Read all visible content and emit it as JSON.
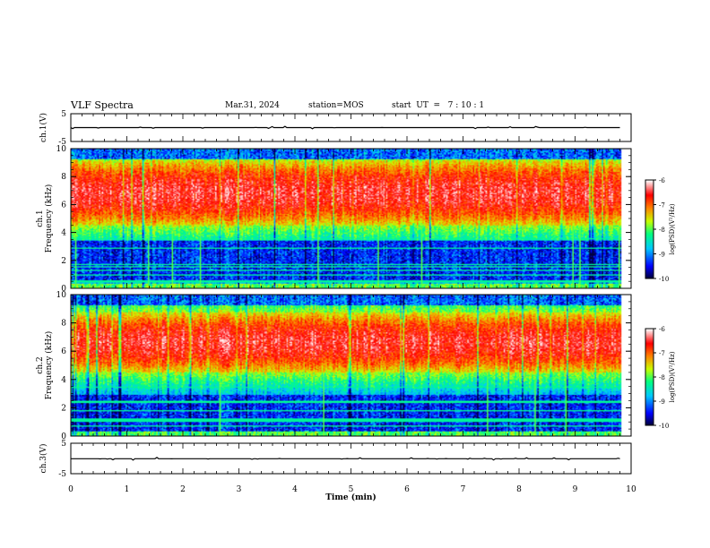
{
  "header": {
    "title": "VLF Spectra",
    "date": "Mar.31, 2024",
    "station": "station=MOS",
    "start": "start  UT  =   7 : 10 : 1"
  },
  "chart_data": [
    {
      "type": "line",
      "id": "ch1-waveform",
      "ylabel": "ch.1(V)",
      "ylim": [
        -5,
        5
      ],
      "yticks": [
        "5",
        "-5"
      ],
      "series": [
        {
          "x_min": [
            0,
            9.8
          ],
          "values_approx": 0
        }
      ]
    },
    {
      "type": "heatmap",
      "id": "ch1-spectrogram",
      "ylabel": "ch.1\nFrequency (kHz)",
      "ylabel_lines": [
        "ch.1",
        "Frequency (kHz)"
      ],
      "xlim": [
        0,
        10
      ],
      "ylim": [
        0,
        10
      ],
      "yticks": [
        "0",
        "2",
        "4",
        "6",
        "8",
        "10"
      ],
      "data_xlim": [
        0,
        9.8
      ],
      "colorbar": {
        "label": "log(PSD)(V²/Hz)",
        "range": [
          -10,
          -6
        ],
        "ticks": [
          "-6",
          "-7",
          "-8",
          "-9",
          "-10"
        ]
      },
      "bands_kHz": {
        "high_intensity": [
          4.5,
          9.2
        ],
        "low_quiet": [
          0.5,
          3.5
        ],
        "top_quiet": [
          9.2,
          10
        ]
      }
    },
    {
      "type": "heatmap",
      "id": "ch2-spectrogram",
      "ylabel": "ch.2\nFrequency (kHz)",
      "ylabel_lines": [
        "ch.2",
        "Frequency (kHz)"
      ],
      "xlim": [
        0,
        10
      ],
      "ylim": [
        0,
        10
      ],
      "yticks": [
        "0",
        "2",
        "4",
        "6",
        "8",
        "10"
      ],
      "data_xlim": [
        0,
        9.8
      ],
      "colorbar": {
        "label": "log(PSD)(V²/Hz)",
        "range": [
          -10,
          -6
        ],
        "ticks": [
          "-6",
          "-7",
          "-8",
          "-9",
          "-10"
        ]
      },
      "bands_kHz": {
        "high_intensity": [
          4.5,
          8.8
        ],
        "low_quiet": [
          0.3,
          3.0
        ]
      }
    },
    {
      "type": "line",
      "id": "ch3-waveform",
      "ylabel": "ch.3(V)",
      "ylim": [
        -5,
        5
      ],
      "yticks": [
        "5",
        "-5"
      ],
      "xlabel": "Time  (min)",
      "xlim": [
        0,
        10
      ],
      "xticks": [
        "0",
        "1",
        "2",
        "3",
        "4",
        "5",
        "6",
        "7",
        "8",
        "9",
        "10"
      ],
      "series": [
        {
          "x_min": [
            0,
            9.8
          ],
          "values_approx": -0.1
        }
      ]
    }
  ],
  "colors": {
    "scale": [
      "#000040",
      "#0000ff",
      "#00c8ff",
      "#00ff80",
      "#c8ff00",
      "#ff8000",
      "#ff0000",
      "#ffffff"
    ]
  }
}
